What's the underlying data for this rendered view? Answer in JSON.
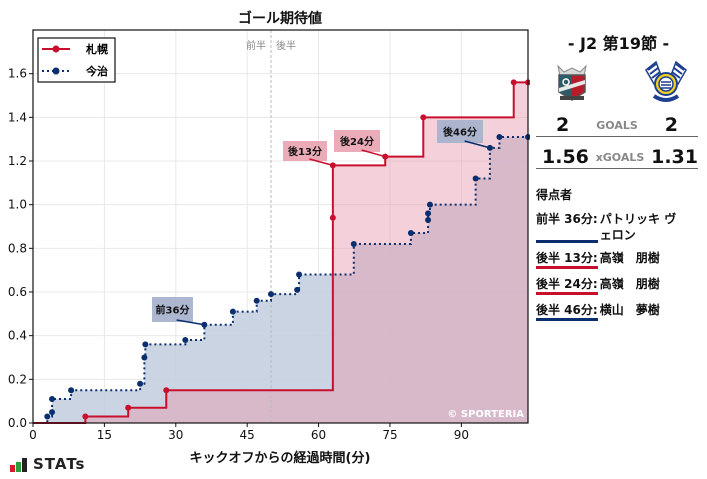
{
  "chart_data": {
    "type": "line",
    "step": true,
    "title": "ゴール期待値",
    "xlabel": "キックオフからの経過時間(分)",
    "ylabel": "",
    "xlim": [
      0,
      104
    ],
    "ylim": [
      0,
      1.8
    ],
    "xticks": [
      0,
      15,
      30,
      45,
      60,
      75,
      90
    ],
    "yticks": [
      0.0,
      0.2,
      0.4,
      0.6,
      0.8,
      1.0,
      1.2,
      1.4,
      1.6
    ],
    "grid": true,
    "legend_position": "upper left",
    "halftime_marker": {
      "x": 50,
      "labels": [
        "前半",
        "後半"
      ]
    },
    "watermark": "© SPORTERIA",
    "series": [
      {
        "name": "札幌",
        "color": "#c8102e",
        "fill": "#f2c7d0",
        "linestyle": "solid",
        "points": [
          [
            0,
            0
          ],
          [
            11,
            0.03
          ],
          [
            20,
            0.07
          ],
          [
            28,
            0.15
          ],
          [
            63,
            0.94
          ],
          [
            63,
            1.18
          ],
          [
            74,
            1.22
          ],
          [
            82,
            1.4
          ],
          [
            101,
            1.56
          ],
          [
            104,
            1.56
          ]
        ]
      },
      {
        "name": "今治",
        "color": "#0b2f6e",
        "fill": "#c5cfdf",
        "linestyle": "dotted",
        "points": [
          [
            0,
            0
          ],
          [
            3,
            0.03
          ],
          [
            4,
            0.05
          ],
          [
            4,
            0.11
          ],
          [
            8,
            0.15
          ],
          [
            22.5,
            0.18
          ],
          [
            23.4,
            0.3
          ],
          [
            23.6,
            0.36
          ],
          [
            32,
            0.38
          ],
          [
            36,
            0.45
          ],
          [
            42,
            0.51
          ],
          [
            47,
            0.56
          ],
          [
            50,
            0.59
          ],
          [
            55.5,
            0.61
          ],
          [
            55.9,
            0.68
          ],
          [
            67.4,
            0.82
          ],
          [
            79.4,
            0.87
          ],
          [
            83,
            0.93
          ],
          [
            83,
            0.96
          ],
          [
            83.4,
            1.0
          ],
          [
            93,
            1.12
          ],
          [
            96,
            1.26
          ],
          [
            98,
            1.31
          ],
          [
            104,
            1.31
          ]
        ]
      }
    ],
    "annotations": [
      {
        "text": "前36分",
        "x": 36,
        "y": 0.45,
        "team": "今治"
      },
      {
        "text": "後13分",
        "x": 63,
        "y": 1.18,
        "team": "札幌"
      },
      {
        "text": "後24分",
        "x": 74,
        "y": 1.22,
        "team": "札幌"
      },
      {
        "text": "後46分",
        "x": 96,
        "y": 1.26,
        "team": "今治"
      }
    ]
  },
  "match": {
    "round": "- J2 第19節 -",
    "home": {
      "name": "札幌",
      "goals": "2",
      "xgoals": "1.56",
      "logo_icon": "sapporo-crest-icon"
    },
    "away": {
      "name": "今治",
      "goals": "2",
      "xgoals": "1.31",
      "logo_icon": "imabari-crest-icon"
    },
    "goals_label": "GOALS",
    "xgoals_label": "xGOALS"
  },
  "scorers": {
    "heading": "得点者",
    "items": [
      {
        "time": "前半 36分:",
        "name": "パトリッキ ヴェロン",
        "color": "#0b2f6e"
      },
      {
        "time": "後半 13分:",
        "name": "高嶺　朋樹",
        "color": "#c8102e"
      },
      {
        "time": "後半 24分:",
        "name": "高嶺　朋樹",
        "color": "#c8102e"
      },
      {
        "time": "後半 46分:",
        "name": "横山　夢樹",
        "color": "#0b2f6e"
      }
    ]
  },
  "brand": {
    "stats_logo": "STATs",
    "bar_colors": [
      "#d7192a",
      "#2a9d3c",
      "#222222"
    ]
  }
}
